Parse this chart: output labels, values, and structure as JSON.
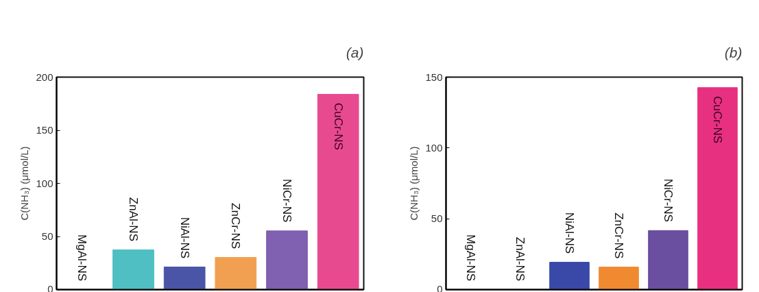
{
  "chart_data": [
    {
      "type": "bar",
      "title": "(a)",
      "ylabel": "C(NH₃) (μmol/L)",
      "categories": [
        "MgAl-NS",
        "ZnAl-NS",
        "NiAl-NS",
        "ZnCr-NS",
        "NiCr-NS",
        "CuCr-NS"
      ],
      "values": [
        0,
        37.5,
        21.3,
        30.3,
        55.3,
        183.8
      ],
      "colors": [
        "#9a9a9a",
        "#4fbfc3",
        "#4a55a8",
        "#f0a050",
        "#8060b0",
        "#e84a90"
      ],
      "ylim": [
        0,
        200
      ],
      "yticks": [
        0,
        50,
        100,
        150,
        200
      ],
      "tick_labels": "y",
      "grid": false
    },
    {
      "type": "bar",
      "title": "(b)",
      "ylabel": "C(NH₃) (μmol/L)",
      "categories": [
        "MgAl-NS",
        "ZnAl-NS",
        "NiAl-NS",
        "ZnCr-NS",
        "NiCr-NS",
        "CuCr-NS"
      ],
      "values": [
        0,
        0,
        19.3,
        15.9,
        41.7,
        142.6
      ],
      "colors": [
        "#9a9a9a",
        "#b0b0b0",
        "#3a48a8",
        "#f08a30",
        "#6a4ea0",
        "#e83080"
      ],
      "ylim": [
        0,
        150
      ],
      "yticks": [
        0,
        50,
        100,
        150
      ],
      "tick_labels": "y",
      "grid": false
    }
  ]
}
